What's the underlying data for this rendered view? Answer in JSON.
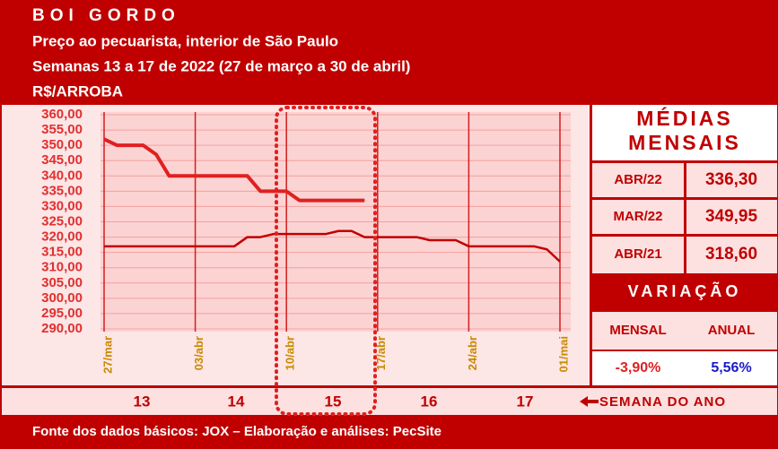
{
  "chart_data": {
    "type": "line",
    "title": "BOI GORDO",
    "subtitle": "Preço ao pecuarista, interior de São Paulo",
    "period": "Semanas 13 a 17 de 2022 (27 de março a 30 de abril)",
    "unit": "R$/ARROBA",
    "categories": [
      "27/mar",
      null,
      null,
      null,
      null,
      null,
      null,
      "03/abr",
      null,
      null,
      null,
      null,
      null,
      null,
      "10/abr",
      null,
      null,
      null,
      null,
      null,
      null,
      "17/abr",
      null,
      null,
      null,
      null,
      null,
      null,
      "24/abr",
      null,
      null,
      null,
      null,
      null,
      null,
      "01/mai"
    ],
    "series": [
      {
        "color": "#e02020",
        "values": [
          352,
          350,
          350,
          350,
          347,
          340,
          340,
          340,
          340,
          340,
          340,
          340,
          335,
          335,
          335,
          332,
          332,
          332,
          332,
          332,
          332,
          null,
          null,
          null,
          null,
          null,
          null,
          null,
          null,
          null,
          null,
          null,
          null,
          null,
          null,
          null
        ]
      },
      {
        "color": "#c00000",
        "values": [
          317,
          317,
          317,
          317,
          317,
          317,
          317,
          317,
          317,
          317,
          317,
          320,
          320,
          321,
          321,
          321,
          321,
          321,
          322,
          322,
          320,
          320,
          320,
          320,
          320,
          319,
          319,
          319,
          317,
          317,
          317,
          317,
          317,
          317,
          316,
          312
        ]
      }
    ],
    "ylim": [
      290,
      360
    ],
    "yticks": [
      {
        "value": 290,
        "label": "290,00"
      },
      {
        "value": 295,
        "label": "295,00"
      },
      {
        "value": 300,
        "label": "300,00"
      },
      {
        "value": 305,
        "label": "305,00"
      },
      {
        "value": 310,
        "label": "310,00"
      },
      {
        "value": 315,
        "label": "315,00"
      },
      {
        "value": 320,
        "label": "320,00"
      },
      {
        "value": 325,
        "label": "325,00"
      },
      {
        "value": 330,
        "label": "330,00"
      },
      {
        "value": 335,
        "label": "335,00"
      },
      {
        "value": 340,
        "label": "340,00"
      },
      {
        "value": 345,
        "label": "345,00"
      },
      {
        "value": 350,
        "label": "350,00"
      },
      {
        "value": 355,
        "label": "355,00"
      },
      {
        "value": 360,
        "label": "360,00"
      }
    ],
    "grid": true
  },
  "weeks": {
    "labels": [
      "13",
      "14",
      "15",
      "16",
      "17"
    ],
    "caption": "SEMANA DO ANO"
  },
  "monthly_averages": {
    "title": [
      "MÉDIAS",
      "MENSAIS"
    ],
    "rows": [
      [
        "ABR/22",
        "336,30"
      ],
      [
        "MAR/22",
        "349,95"
      ],
      [
        "ABR/21",
        "318,60"
      ]
    ]
  },
  "variation": {
    "title": "VARIAÇÃO",
    "headers": [
      "MENSAL",
      "ANUAL"
    ],
    "values": [
      "-3,90%",
      "5,56%"
    ]
  },
  "source": "Fonte dos dados básicos: JOX – Elaboração e análises: PecSite"
}
